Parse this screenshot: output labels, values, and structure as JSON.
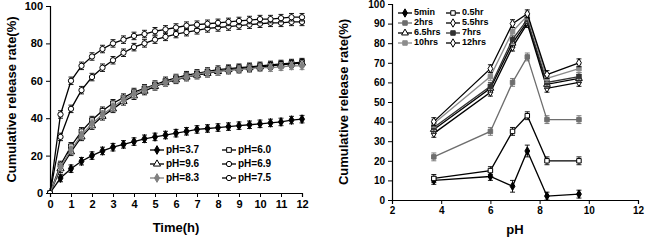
{
  "chart_data": [
    {
      "type": "line",
      "x_label": "Time(h)",
      "y_label": "Cumulative release rate(%)",
      "x": [
        0,
        0.5,
        1,
        1.5,
        2,
        2.5,
        3,
        3.5,
        4,
        4.5,
        5,
        5.5,
        6,
        6.5,
        7,
        7.5,
        8,
        8.5,
        9,
        9.5,
        10,
        10.5,
        11,
        11.5,
        12
      ],
      "xlim": [
        0,
        12
      ],
      "xticks": [
        0,
        1,
        2,
        3,
        4,
        5,
        6,
        7,
        8,
        9,
        10,
        11,
        12
      ],
      "ylim": [
        0,
        100
      ],
      "yticks": [
        0,
        20,
        40,
        60,
        80,
        100
      ],
      "legend": "lower right",
      "series": [
        {
          "name": "pH=3.7",
          "color": "#000000",
          "marker": "diamond",
          "values": [
            0,
            8,
            13,
            17,
            20,
            22.5,
            24.5,
            26,
            27.5,
            29,
            30,
            31,
            32,
            33,
            34,
            34.5,
            35,
            35.5,
            36,
            36.5,
            37,
            37.5,
            38,
            39,
            39.5
          ],
          "errors": [
            0,
            2,
            2,
            2,
            2,
            2,
            2,
            2,
            2,
            2,
            2,
            2,
            2,
            2,
            2,
            2,
            2,
            2,
            2,
            2,
            2,
            2,
            2,
            2,
            2
          ]
        },
        {
          "name": "pH=6.0",
          "color": "#000000",
          "marker": "square-open",
          "values": [
            0,
            15,
            25,
            33,
            39,
            44,
            48,
            51,
            54,
            56,
            58,
            60,
            61.5,
            63,
            64,
            65,
            66,
            66.5,
            67,
            67.5,
            68,
            68.5,
            69,
            69.5,
            70
          ],
          "errors": [
            0,
            2,
            2,
            2,
            2,
            2,
            2,
            2,
            2,
            2,
            2,
            2,
            2,
            2,
            2,
            2,
            2,
            2,
            2,
            2,
            2,
            2,
            2,
            2,
            2
          ]
        },
        {
          "name": "pH=9.6",
          "color": "#000000",
          "marker": "triangle-open",
          "values": [
            0,
            13,
            22,
            30,
            36,
            41,
            45,
            49,
            52,
            54.5,
            57,
            59,
            60.5,
            62,
            63,
            64,
            65,
            66,
            66.5,
            67,
            67.5,
            68,
            68.5,
            69,
            69.5
          ],
          "errors": [
            0,
            2,
            2,
            2,
            2,
            2,
            2,
            2,
            2,
            2,
            2,
            2,
            2,
            2,
            2,
            2,
            2,
            2,
            2,
            2,
            2,
            2,
            2,
            2,
            2
          ]
        },
        {
          "name": "pH=6.9",
          "color": "#000000",
          "marker": "circle-open",
          "values": [
            0,
            30,
            45,
            55,
            62,
            67,
            71,
            75,
            78,
            80,
            82,
            83.5,
            85,
            86,
            87,
            88,
            88.5,
            89,
            89.5,
            90,
            90.5,
            91,
            91,
            91.5,
            91.5
          ],
          "errors": [
            0,
            2,
            2,
            2,
            2,
            2,
            2,
            2,
            2,
            2,
            2,
            2,
            2,
            2,
            2,
            2,
            2,
            2,
            2,
            2,
            2,
            2,
            2,
            2,
            2
          ]
        },
        {
          "name": "pH=8.3",
          "color": "#808080",
          "marker": "diamond",
          "values": [
            0,
            14,
            23,
            31,
            37,
            42,
            46,
            50,
            53,
            55.5,
            57.5,
            59,
            61,
            62,
            63.5,
            64.5,
            65,
            65.5,
            66,
            66.5,
            67,
            67,
            67.5,
            68,
            68
          ],
          "errors": [
            0,
            2,
            2,
            2,
            2,
            2,
            2,
            2,
            2,
            2,
            2,
            2,
            2,
            2,
            2,
            2,
            2,
            2,
            2,
            2,
            2,
            2,
            2,
            2,
            2
          ]
        },
        {
          "name": "pH=7.5",
          "color": "#000000",
          "marker": "circle-open",
          "values": [
            0,
            42,
            60,
            68,
            73,
            77,
            80,
            82,
            84,
            85,
            86.5,
            87.5,
            88.5,
            89.5,
            90,
            90.5,
            91,
            91.5,
            92,
            92.5,
            93,
            93,
            93.5,
            94,
            94
          ],
          "errors": [
            0,
            2,
            2,
            2,
            2,
            2,
            2,
            2,
            2,
            2,
            2,
            2,
            2,
            2,
            2,
            2,
            2,
            2,
            2,
            2,
            2,
            2,
            2,
            2,
            2
          ]
        }
      ]
    },
    {
      "type": "line",
      "x_label": "pH",
      "y_label": "Cumulative release rate(%)",
      "x": [
        3.7,
        6.0,
        6.9,
        7.5,
        8.3,
        9.6
      ],
      "xlim": [
        2,
        12
      ],
      "xticks": [
        2,
        4,
        6,
        8,
        10,
        12
      ],
      "ylim": [
        0,
        100
      ],
      "yticks": [
        0,
        10,
        20,
        30,
        40,
        50,
        60,
        70,
        80,
        90,
        100
      ],
      "legend": "upper left",
      "series": [
        {
          "name": "5min",
          "color": "#000000",
          "marker": "diamond",
          "values": [
            10,
            12,
            7,
            25,
            2,
            3
          ],
          "errors": [
            2,
            2,
            3,
            3,
            2,
            2
          ]
        },
        {
          "name": "0.5hr",
          "color": "#000000",
          "marker": "square-open",
          "values": [
            11,
            15,
            35,
            43,
            20,
            20
          ],
          "errors": [
            2,
            2,
            2,
            2,
            2,
            2
          ]
        },
        {
          "name": "2hrs",
          "color": "#6e6e6e",
          "marker": "square",
          "values": [
            22,
            35,
            60,
            73,
            41,
            41
          ],
          "errors": [
            2,
            2,
            2,
            2,
            2,
            2
          ]
        },
        {
          "name": "5.5hrs",
          "color": "#000000",
          "marker": "diamond-open",
          "values": [
            34,
            55,
            78,
            90,
            57,
            60
          ],
          "errors": [
            2,
            2,
            2,
            2,
            2,
            2
          ]
        },
        {
          "name": "6.5hrs",
          "color": "#000000",
          "marker": "triangle-open",
          "values": [
            36,
            57,
            80,
            91,
            59,
            62
          ],
          "errors": [
            2,
            2,
            2,
            2,
            2,
            2
          ]
        },
        {
          "name": "7hrs",
          "color": "#333333",
          "marker": "square",
          "values": [
            37,
            58,
            82,
            92,
            60,
            63
          ],
          "errors": [
            2,
            2,
            2,
            2,
            2,
            2
          ]
        },
        {
          "name": "10hrs",
          "color": "#8c8c8c",
          "marker": "square",
          "values": [
            39,
            63,
            86,
            94,
            62,
            67
          ],
          "errors": [
            2,
            2,
            2,
            2,
            2,
            2
          ]
        },
        {
          "name": "12hrs",
          "color": "#000000",
          "marker": "diamond-open",
          "values": [
            40,
            67,
            90,
            95,
            64,
            70
          ],
          "errors": [
            2,
            2,
            2,
            2,
            2,
            2
          ]
        }
      ]
    }
  ]
}
